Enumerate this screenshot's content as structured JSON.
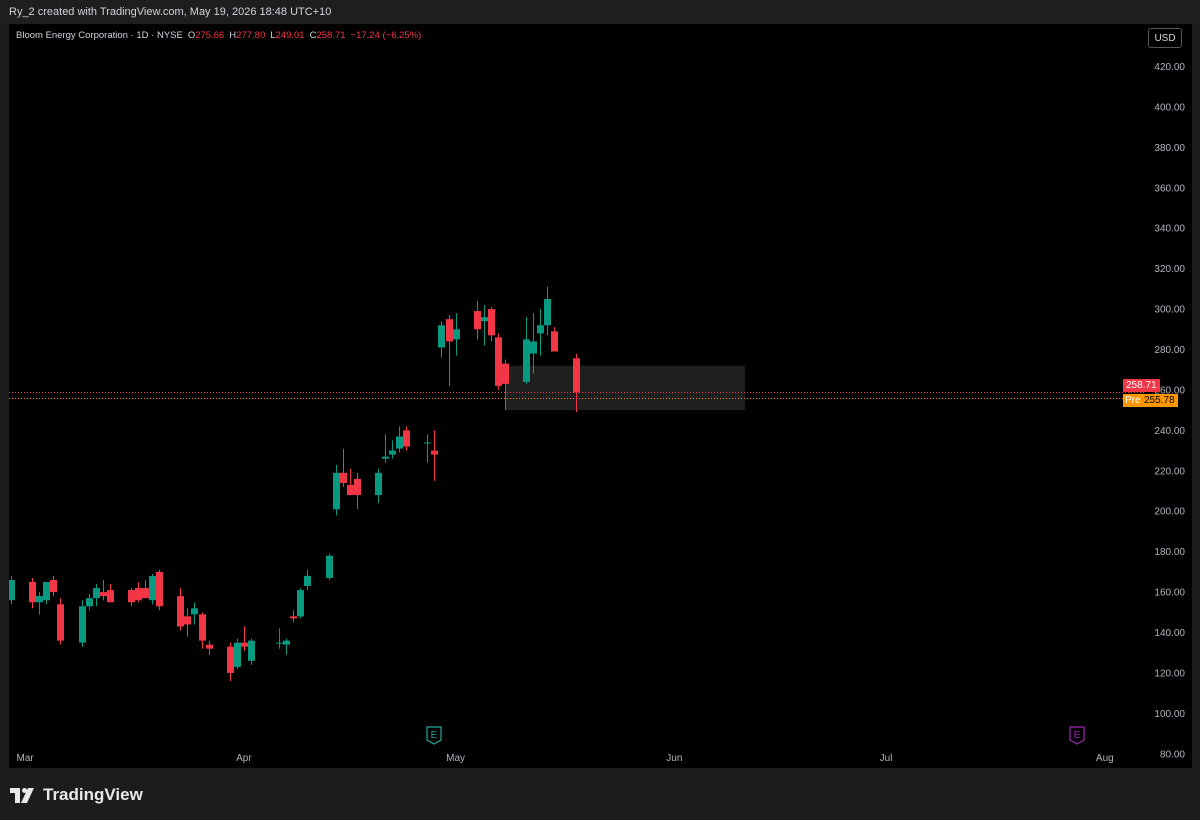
{
  "header": {
    "attribution": "Ry_2 created with TradingView.com, May 19, 2026 18:48 UTC+10"
  },
  "legend": {
    "symbol": "Bloom Energy Corporation · 1D · NYSE",
    "open_label": "O",
    "open": "275.66",
    "high_label": "H",
    "high": "277.80",
    "low_label": "L",
    "low": "249.01",
    "close_label": "C",
    "close": "258.71",
    "change": "−17.24 (−6.25%)"
  },
  "currency_button": "USD",
  "price_tags": {
    "last": "258.71",
    "pre_label": "Pre",
    "pre": "255.78",
    "last_color": "#f23645",
    "pre_color": "#ff9800"
  },
  "colors": {
    "up": "#089981",
    "down": "#f23645",
    "earnings_past": "#26a69a",
    "earnings_future": "#9c27b0"
  },
  "earnings_markers": [
    {
      "label": "E",
      "date": "2026-04-28",
      "status": "past",
      "icon": "earnings-icon"
    },
    {
      "label": "E",
      "date": "2026-07-28",
      "status": "future",
      "icon": "earnings-icon"
    }
  ],
  "footer": {
    "logo_text": "TradingView",
    "logo_icon": "tradingview-logo-icon"
  },
  "chart_data": {
    "type": "candlestick",
    "title": "Bloom Energy Corporation",
    "interval": "1D",
    "exchange": "NYSE",
    "currency": "USD",
    "y_ticks": [
      "80.00",
      "100.00",
      "120.00",
      "140.00",
      "160.00",
      "180.00",
      "200.00",
      "220.00",
      "240.00",
      "260.00",
      "280.00",
      "300.00",
      "320.00",
      "340.00",
      "360.00",
      "380.00",
      "400.00",
      "420.00"
    ],
    "y_tick_values": [
      80,
      100,
      120,
      140,
      160,
      180,
      200,
      220,
      240,
      260,
      280,
      300,
      320,
      340,
      360,
      380,
      400,
      420
    ],
    "y_visible_range": [
      73,
      441
    ],
    "x_visible_range": [
      "2026-02-27",
      "2026-08-04"
    ],
    "x_ticks": [
      {
        "label": "Mar",
        "date": "2026-03-01"
      },
      {
        "label": "Apr",
        "date": "2026-04-01"
      },
      {
        "label": "May",
        "date": "2026-05-01"
      },
      {
        "label": "Jun",
        "date": "2026-06-01"
      },
      {
        "label": "Jul",
        "date": "2026-07-01"
      },
      {
        "label": "Aug",
        "date": "2026-08-01"
      }
    ],
    "last_price": 258.71,
    "premarket_price": 255.78,
    "highlight_zone": {
      "x_start": "2026-05-08",
      "x_end": "2026-06-11",
      "y_low": 250,
      "y_high": 272
    },
    "candles": [
      {
        "date": "2026-02-27",
        "o": 156,
        "h": 168,
        "l": 154,
        "c": 166
      },
      {
        "date": "2026-03-02",
        "o": 165,
        "h": 167,
        "l": 152,
        "c": 155
      },
      {
        "date": "2026-03-03",
        "o": 155,
        "h": 160,
        "l": 149,
        "c": 158
      },
      {
        "date": "2026-03-04",
        "o": 156,
        "h": 165,
        "l": 154,
        "c": 165
      },
      {
        "date": "2026-03-05",
        "o": 166,
        "h": 168,
        "l": 158,
        "c": 160
      },
      {
        "date": "2026-03-06",
        "o": 154,
        "h": 157,
        "l": 134,
        "c": 136
      },
      {
        "date": "2026-03-09",
        "o": 135,
        "h": 156,
        "l": 133,
        "c": 153
      },
      {
        "date": "2026-03-10",
        "o": 153,
        "h": 159,
        "l": 151,
        "c": 157
      },
      {
        "date": "2026-03-11",
        "o": 157,
        "h": 164,
        "l": 153,
        "c": 162
      },
      {
        "date": "2026-03-12",
        "o": 160,
        "h": 166,
        "l": 156,
        "c": 158
      },
      {
        "date": "2026-03-13",
        "o": 161,
        "h": 164,
        "l": 155,
        "c": 155
      },
      {
        "date": "2026-03-16",
        "o": 161,
        "h": 162,
        "l": 153,
        "c": 155
      },
      {
        "date": "2026-03-17",
        "o": 162,
        "h": 165,
        "l": 155,
        "c": 156
      },
      {
        "date": "2026-03-18",
        "o": 162,
        "h": 166,
        "l": 157,
        "c": 157
      },
      {
        "date": "2026-03-19",
        "o": 156,
        "h": 169,
        "l": 154,
        "c": 168
      },
      {
        "date": "2026-03-20",
        "o": 170,
        "h": 171,
        "l": 151,
        "c": 153
      },
      {
        "date": "2026-03-23",
        "o": 158,
        "h": 162,
        "l": 141,
        "c": 143
      },
      {
        "date": "2026-03-24",
        "o": 148,
        "h": 152,
        "l": 138,
        "c": 144
      },
      {
        "date": "2026-03-25",
        "o": 149,
        "h": 155,
        "l": 144,
        "c": 152
      },
      {
        "date": "2026-03-26",
        "o": 149,
        "h": 150,
        "l": 132,
        "c": 136
      },
      {
        "date": "2026-03-27",
        "o": 134,
        "h": 136,
        "l": 129,
        "c": 132
      },
      {
        "date": "2026-03-30",
        "o": 133,
        "h": 135,
        "l": 116,
        "c": 120
      },
      {
        "date": "2026-03-31",
        "o": 123,
        "h": 137,
        "l": 122,
        "c": 135
      },
      {
        "date": "2026-04-01",
        "o": 135,
        "h": 143,
        "l": 131,
        "c": 133
      },
      {
        "date": "2026-04-02",
        "o": 126,
        "h": 137,
        "l": 124,
        "c": 136
      },
      {
        "date": "2026-04-06",
        "o": 135,
        "h": 142,
        "l": 132,
        "c": 135
      },
      {
        "date": "2026-04-07",
        "o": 134,
        "h": 137,
        "l": 129,
        "c": 136
      },
      {
        "date": "2026-04-08",
        "o": 148,
        "h": 151,
        "l": 145,
        "c": 147
      },
      {
        "date": "2026-04-09",
        "o": 148,
        "h": 162,
        "l": 147,
        "c": 161
      },
      {
        "date": "2026-04-10",
        "o": 163,
        "h": 171,
        "l": 161,
        "c": 168
      },
      {
        "date": "2026-04-13",
        "o": 167,
        "h": 179,
        "l": 166,
        "c": 178
      },
      {
        "date": "2026-04-14",
        "o": 201,
        "h": 223,
        "l": 198,
        "c": 219
      },
      {
        "date": "2026-04-15",
        "o": 219,
        "h": 231,
        "l": 212,
        "c": 214
      },
      {
        "date": "2026-04-16",
        "o": 213,
        "h": 221,
        "l": 208,
        "c": 208
      },
      {
        "date": "2026-04-17",
        "o": 216,
        "h": 219,
        "l": 201,
        "c": 208
      },
      {
        "date": "2026-04-20",
        "o": 208,
        "h": 221,
        "l": 204,
        "c": 219
      },
      {
        "date": "2026-04-21",
        "o": 226,
        "h": 238,
        "l": 224,
        "c": 227
      },
      {
        "date": "2026-04-22",
        "o": 228,
        "h": 235,
        "l": 226,
        "c": 230
      },
      {
        "date": "2026-04-23",
        "o": 231,
        "h": 242,
        "l": 229,
        "c": 237
      },
      {
        "date": "2026-04-24",
        "o": 240,
        "h": 242,
        "l": 230,
        "c": 232
      },
      {
        "date": "2026-04-27",
        "o": 234,
        "h": 238,
        "l": 224,
        "c": 234
      },
      {
        "date": "2026-04-28",
        "o": 230,
        "h": 240,
        "l": 215,
        "c": 228
      },
      {
        "date": "2026-04-29",
        "o": 281,
        "h": 294,
        "l": 276,
        "c": 292
      },
      {
        "date": "2026-04-30",
        "o": 295,
        "h": 297,
        "l": 262,
        "c": 284
      },
      {
        "date": "2026-05-01",
        "o": 285,
        "h": 298,
        "l": 277,
        "c": 290
      },
      {
        "date": "2026-05-04",
        "o": 299,
        "h": 304,
        "l": 285,
        "c": 290
      },
      {
        "date": "2026-05-05",
        "o": 294,
        "h": 302,
        "l": 282,
        "c": 296
      },
      {
        "date": "2026-05-06",
        "o": 300,
        "h": 301,
        "l": 284,
        "c": 287
      },
      {
        "date": "2026-05-07",
        "o": 286,
        "h": 288,
        "l": 260,
        "c": 262
      },
      {
        "date": "2026-05-08",
        "o": 273,
        "h": 275,
        "l": 250,
        "c": 263
      },
      {
        "date": "2026-05-11",
        "o": 264,
        "h": 296,
        "l": 263,
        "c": 285
      },
      {
        "date": "2026-05-12",
        "o": 278,
        "h": 298,
        "l": 268,
        "c": 284
      },
      {
        "date": "2026-05-13",
        "o": 288,
        "h": 300,
        "l": 277,
        "c": 292
      },
      {
        "date": "2026-05-14",
        "o": 292,
        "h": 311,
        "l": 287,
        "c": 305
      },
      {
        "date": "2026-05-15",
        "o": 289,
        "h": 291,
        "l": 279,
        "c": 279
      },
      {
        "date": "2026-05-18",
        "o": 275.66,
        "h": 277.8,
        "l": 249.01,
        "c": 258.71
      }
    ]
  }
}
